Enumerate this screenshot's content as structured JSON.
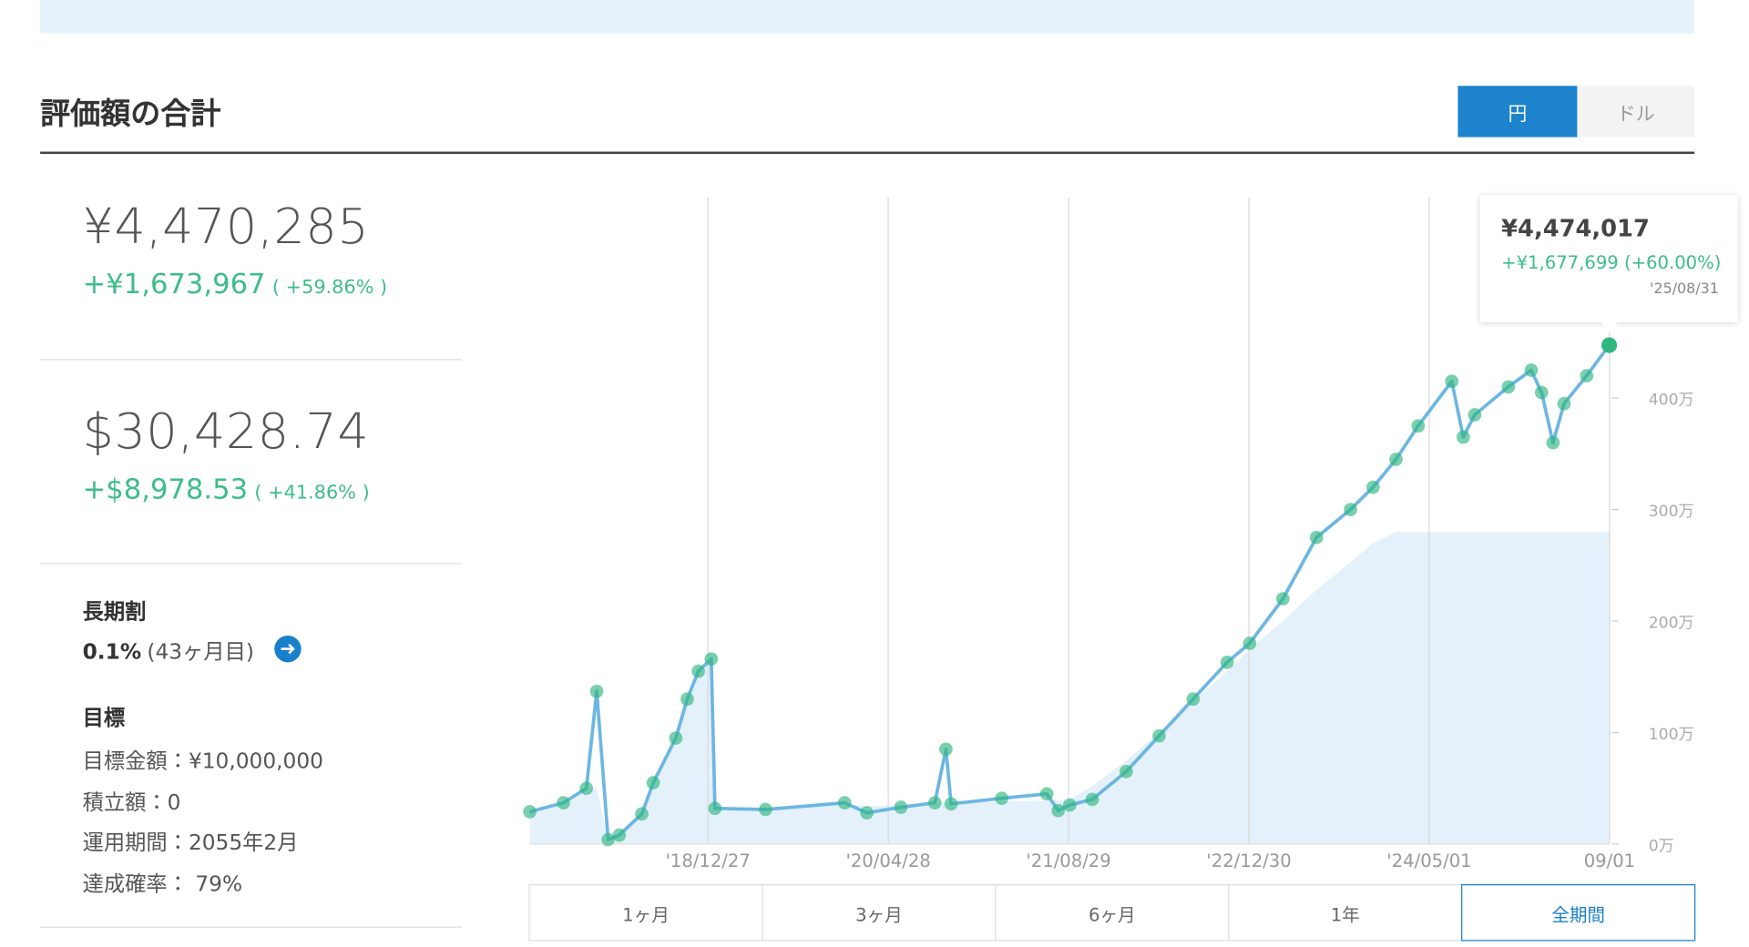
{
  "header": {
    "title": "評価額の合計",
    "currency_toggle": [
      "円",
      "ドル"
    ],
    "active_currency": 0
  },
  "summary": {
    "jpy_total": "¥4,470,285",
    "jpy_gain": "+¥1,673,967",
    "jpy_gain_pct": "( +59.86% )",
    "usd_total": "$30,428.74",
    "usd_gain": "+$8,978.53",
    "usd_gain_pct": "( +41.86% )"
  },
  "discount": {
    "title": "長期割",
    "rate": "0.1%",
    "months": "(43ヶ月目)"
  },
  "goal": {
    "title": "目標",
    "items": [
      "目標金額：¥10,000,000",
      "積立額：0",
      "運用期間：2055年2月",
      "達成確率： 79%"
    ]
  },
  "chart_data": {
    "type": "line",
    "x": [
      "2017-09-01",
      "2017-12-01",
      "2018-02-01",
      "2018-03-01",
      "2018-04-01",
      "2018-05-01",
      "2018-07-01",
      "2018-08-01",
      "2018-10-01",
      "2018-11-01",
      "2018-12-01",
      "2019-01-05",
      "2019-01-15",
      "2019-06-01",
      "2020-01-01",
      "2020-03-01",
      "2020-06-01",
      "2020-09-01",
      "2020-10-01",
      "2020-10-15",
      "2021-03-01",
      "2021-07-01",
      "2021-08-01",
      "2021-09-01",
      "2021-11-01",
      "2022-02-01",
      "2022-05-01",
      "2022-08-01",
      "2022-11-01",
      "2023-01-01",
      "2023-04-01",
      "2023-07-01",
      "2023-10-01",
      "2023-12-01",
      "2024-02-01",
      "2024-04-01",
      "2024-07-01",
      "2024-08-01",
      "2024-09-01",
      "2024-12-01",
      "2025-02-01",
      "2025-03-01",
      "2025-04-01",
      "2025-05-01",
      "2025-07-01",
      "2025-08-31"
    ],
    "series": [
      {
        "color": "#6cb6e4",
        "marker_color": "#2fb77f",
        "values": [
          29,
          37,
          50,
          137,
          4,
          8,
          27,
          55,
          95,
          130,
          155,
          166,
          32,
          31,
          37,
          28,
          33,
          37,
          85,
          36,
          41,
          45,
          30,
          35,
          40,
          65,
          97,
          130,
          163,
          180,
          220,
          275,
          300,
          320,
          345,
          375,
          415,
          365,
          385,
          410,
          425,
          405,
          360,
          395,
          420,
          447.4
        ]
      },
      {
        "color": "#e4f1fa",
        "fill": true,
        "values": [
          29,
          37,
          50,
          50,
          4,
          8,
          27,
          55,
          95,
          130,
          155,
          166,
          32,
          31,
          36,
          34,
          35,
          36,
          37,
          37,
          38,
          39,
          39,
          40,
          52,
          75,
          100,
          128,
          155,
          175,
          200,
          228,
          253,
          270,
          280,
          280,
          280,
          280,
          280,
          280,
          280,
          280,
          280,
          280,
          280,
          280
        ]
      }
    ],
    "xlim": [
      "2017-09-01",
      "2025-09-01"
    ],
    "xticks": [
      {
        "value": "2018-12-27",
        "label": "'18/12/27"
      },
      {
        "value": "2020-04-28",
        "label": "'20/04/28"
      },
      {
        "value": "2021-08-29",
        "label": "'21/08/29"
      },
      {
        "value": "2022-12-30",
        "label": "'22/12/30"
      },
      {
        "value": "2024-05-01",
        "label": "'24/05/01"
      },
      {
        "value": "2025-09-01",
        "label": "09/01"
      }
    ],
    "ylim": [
      0,
      580
    ],
    "yticks": [
      {
        "value": 0,
        "label": "0万"
      },
      {
        "value": 100,
        "label": "100万"
      },
      {
        "value": 200,
        "label": "200万"
      },
      {
        "value": 300,
        "label": "300万"
      },
      {
        "value": 400,
        "label": "400万"
      }
    ],
    "grid": "x"
  },
  "tooltip": {
    "value": "¥4,474,017",
    "gain": "+¥1,677,699 (+60.00%)",
    "date": "'25/08/31"
  },
  "range_buttons": [
    "1ヶ月",
    "3ヶ月",
    "6ヶ月",
    "1年",
    "全期間"
  ],
  "active_range": 4
}
